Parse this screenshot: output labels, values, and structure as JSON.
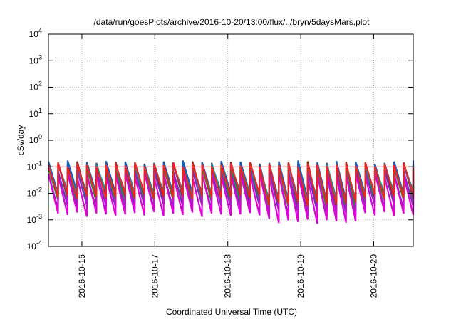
{
  "chart_data": {
    "type": "line",
    "title": "/data/run/goesPlots/archive/2016-10-20/13:00/flux/../bryn/5daysMars.plot",
    "xlabel": "Coordinated Universal Time (UTC)",
    "ylabel": "cSv/day",
    "y_scale": "log",
    "ylim": [
      0.0001,
      10000
    ],
    "y_ticks": [
      {
        "value": 0.0001,
        "base": "10",
        "exp": "-4"
      },
      {
        "value": 0.001,
        "base": "10",
        "exp": "-3"
      },
      {
        "value": 0.01,
        "base": "10",
        "exp": "-2"
      },
      {
        "value": 0.1,
        "base": "10",
        "exp": "-1"
      },
      {
        "value": 1,
        "base": "10",
        "exp": "0"
      },
      {
        "value": 10,
        "base": "10",
        "exp": "1"
      },
      {
        "value": 100,
        "base": "10",
        "exp": "2"
      },
      {
        "value": 1000,
        "base": "10",
        "exp": "3"
      },
      {
        "value": 10000,
        "base": "10",
        "exp": "4"
      }
    ],
    "xlim": [
      "2016-10-15 13:00",
      "2016-10-20 13:00"
    ],
    "x_ticks": [
      "2016-10-16",
      "2016-10-17",
      "2016-10-18",
      "2016-10-19",
      "2016-10-20"
    ],
    "grid": true,
    "reference_line": {
      "value": 0.1,
      "color": "#ff8080"
    },
    "sawtooth": {
      "teeth_per_day": 7.6,
      "peak_jitter": [
        0.0,
        0.05,
        -0.04,
        0.09,
        -0.07,
        0.03,
        -0.02,
        0.07,
        -0.09,
        0.04,
        0.0,
        -0.05
      ],
      "dip_days": [
        3.0,
        3.45,
        3.9
      ]
    },
    "series": [
      {
        "color": "#7a2a1a",
        "peak": 0.13,
        "trough": 0.0055
      },
      {
        "color": "#1560bd",
        "peak": 0.14,
        "trough": 0.0085
      },
      {
        "color": "#00a0a0",
        "peak": 0.1,
        "trough": 0.01
      },
      {
        "color": "#2e8b2e",
        "peak": 0.075,
        "trough": 0.0045
      },
      {
        "color": "#7b2fbe",
        "peak": 0.065,
        "trough": 0.003
      },
      {
        "color": "#e000d8",
        "peak": 0.05,
        "trough": 0.0016
      },
      {
        "color": "#ee2222",
        "peak": 0.12,
        "trough": 0.0075
      }
    ]
  }
}
